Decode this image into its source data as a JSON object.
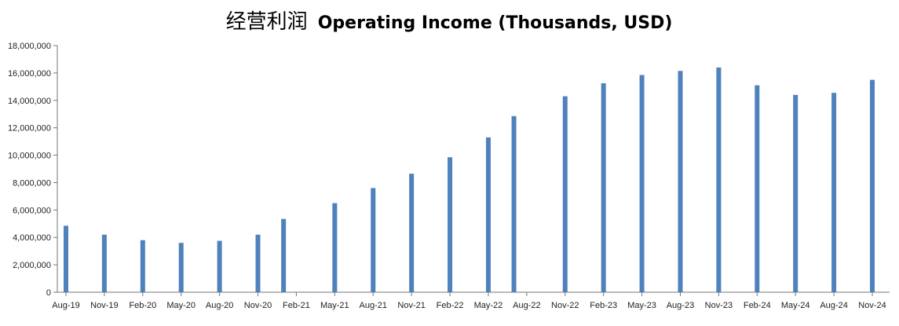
{
  "chart_data": {
    "type": "bar",
    "title": "经营利润 Operating Income (Thousands, USD)",
    "title_parts": {
      "chinese": "经营利润",
      "english": "Operating Income (Thousands, USD)"
    },
    "xlabel": "",
    "ylabel": "",
    "ylim": [
      0,
      18000000
    ],
    "yticks": [
      "0",
      "2,000,000",
      "4,000,000",
      "6,000,000",
      "8,000,000",
      "10,000,000",
      "12,000,000",
      "14,000,000",
      "16,000,000",
      "18,000,000"
    ],
    "grid": false,
    "legend": "none",
    "bar_color": "#4f81bd",
    "x_tick_labels": [
      "Aug-19",
      "Nov-19",
      "Feb-20",
      "May-20",
      "Aug-20",
      "Nov-20",
      "Feb-21",
      "May-21",
      "Aug-21",
      "Nov-21",
      "Feb-22",
      "May-22",
      "Aug-22",
      "Nov-22",
      "Feb-23",
      "May-23",
      "Aug-23",
      "Nov-23",
      "Feb-24",
      "May-24",
      "Aug-24",
      "Nov-24"
    ],
    "bars": [
      {
        "date": "2019-08",
        "value": 4850000
      },
      {
        "date": "2019-11",
        "value": 4200000
      },
      {
        "date": "2020-02",
        "value": 3800000
      },
      {
        "date": "2020-05",
        "value": 3600000
      },
      {
        "date": "2020-08",
        "value": 3750000
      },
      {
        "date": "2020-11",
        "value": 4200000
      },
      {
        "date": "2021-01",
        "value": 5350000
      },
      {
        "date": "2021-05",
        "value": 6500000
      },
      {
        "date": "2021-08",
        "value": 7600000
      },
      {
        "date": "2021-11",
        "value": 8650000
      },
      {
        "date": "2022-02",
        "value": 9850000
      },
      {
        "date": "2022-05",
        "value": 11300000
      },
      {
        "date": "2022-07",
        "value": 12850000
      },
      {
        "date": "2022-11",
        "value": 14300000
      },
      {
        "date": "2023-02",
        "value": 15250000
      },
      {
        "date": "2023-05",
        "value": 15850000
      },
      {
        "date": "2023-08",
        "value": 16150000
      },
      {
        "date": "2023-11",
        "value": 16400000
      },
      {
        "date": "2024-02",
        "value": 15100000
      },
      {
        "date": "2024-05",
        "value": 14400000
      },
      {
        "date": "2024-08",
        "value": 14550000
      },
      {
        "date": "2024-11",
        "value": 15500000
      }
    ]
  }
}
